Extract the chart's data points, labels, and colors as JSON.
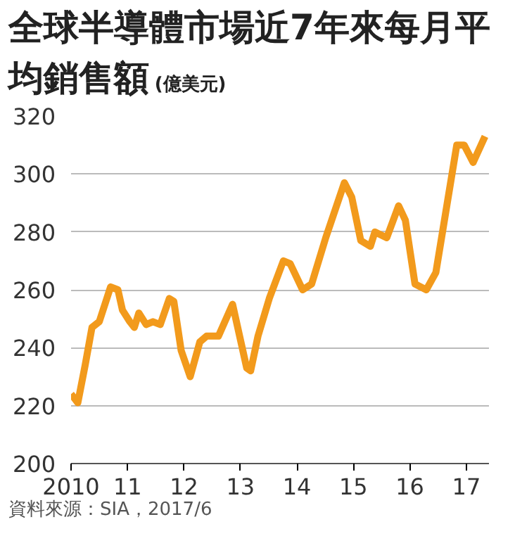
{
  "chart_data": {
    "type": "line",
    "title": "全球半導體市場近7年來每月平均銷售額",
    "subtitle": "(億美元)",
    "x": [
      2010.0,
      2010.12,
      2010.25,
      2010.37,
      2010.5,
      2010.7,
      2010.83,
      2010.91,
      2011.04,
      2011.12,
      2011.2,
      2011.33,
      2011.45,
      2011.58,
      2011.74,
      2011.82,
      2011.95,
      2012.11,
      2012.28,
      2012.4,
      2012.61,
      2012.86,
      2013.11,
      2013.18,
      2013.31,
      2013.51,
      2013.76,
      2013.88,
      2014.1,
      2014.26,
      2014.51,
      2014.84,
      2014.97,
      2015.13,
      2015.3,
      2015.38,
      2015.59,
      2015.8,
      2015.92,
      2016.09,
      2016.29,
      2016.46,
      2016.67,
      2016.83,
      2016.96,
      2017.12,
      2017.33
    ],
    "series": [
      {
        "color": "#f29a1c",
        "values": [
          224,
          221,
          234,
          247,
          249,
          261,
          260,
          253,
          249,
          247,
          252,
          248,
          249,
          248,
          257,
          256,
          239,
          230,
          242,
          244,
          244,
          255,
          233,
          232,
          244,
          257,
          270,
          269,
          260,
          262,
          278,
          297,
          292,
          277,
          275,
          280,
          278,
          289,
          284,
          262,
          260,
          266,
          291,
          310,
          310,
          304,
          313
        ]
      }
    ],
    "xlim": [
      2010,
      2017.4
    ],
    "ylim": [
      200,
      320
    ],
    "xticks": [
      2010,
      {
        "value": 2011,
        "label": "11"
      },
      {
        "value": 2012,
        "label": "12"
      },
      {
        "value": 2013,
        "label": "13"
      },
      {
        "value": 2014,
        "label": "14"
      },
      {
        "value": 2015,
        "label": "15"
      },
      {
        "value": 2016,
        "label": "16"
      },
      {
        "value": 2017,
        "label": "17"
      }
    ],
    "yticks": [
      200,
      220,
      240,
      260,
      280,
      300,
      320
    ],
    "grid": "y",
    "marker": "none",
    "line_style": "solid",
    "annotations": [
      "資料來源：SIA，2017/6"
    ]
  }
}
